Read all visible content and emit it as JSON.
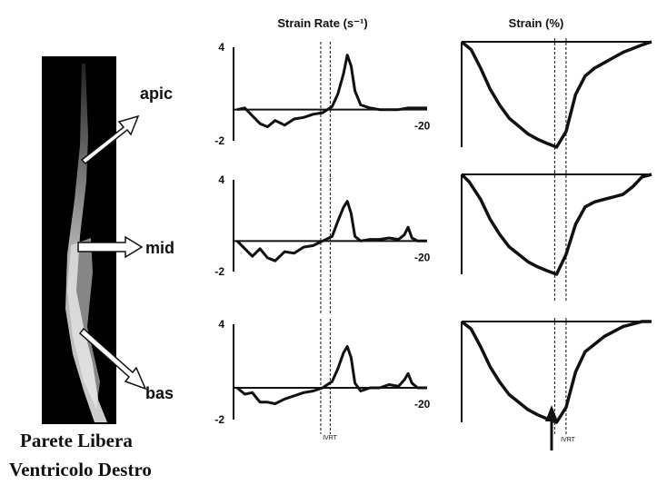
{
  "titles": {
    "strain_rate": "Strain Rate (s⁻¹)",
    "strain": "Strain (%)"
  },
  "echo_labels": {
    "apic": "apic",
    "mid": "mid",
    "bas": "bas"
  },
  "caption": {
    "line1": "Parete Libera",
    "line2": "Ventricolo Destro"
  },
  "marker_label": "IVRT",
  "colors": {
    "ink": "#111111",
    "echo_bg": "#000000"
  },
  "chart_data": [
    {
      "type": "line",
      "title": "Strain Rate (s⁻¹)",
      "segment": "apic",
      "tick_labels": {
        "top": "4",
        "bottom": "-2",
        "right": "-20"
      },
      "ylim": [
        -2,
        4
      ],
      "series": [
        {
          "x": [
            0,
            0.04,
            0.08,
            0.12,
            0.16,
            0.2,
            0.25,
            0.3,
            0.35,
            0.4,
            0.45,
            0.5,
            0.53,
            0.56,
            0.58,
            0.6,
            0.62,
            0.65,
            0.7,
            0.75,
            0.8,
            0.85,
            0.9,
            0.95,
            1.0
          ],
          "y": [
            0,
            0.1,
            -0.4,
            -0.9,
            -1.1,
            -0.7,
            -1.0,
            -0.6,
            -0.5,
            -0.3,
            -0.2,
            0.2,
            1.0,
            2.3,
            3.5,
            2.8,
            1.2,
            0.3,
            0.1,
            0.0,
            0.0,
            0.0,
            0.1,
            0.1,
            0.1
          ]
        }
      ],
      "markers": [
        0.44,
        0.49
      ]
    },
    {
      "type": "line",
      "title": "Strain Rate (s⁻¹)",
      "segment": "mid",
      "tick_labels": {
        "top": "4",
        "bottom": "-2",
        "right": "-20"
      },
      "ylim": [
        -2,
        4
      ],
      "series": [
        {
          "x": [
            0,
            0.04,
            0.08,
            0.12,
            0.16,
            0.2,
            0.25,
            0.3,
            0.35,
            0.4,
            0.45,
            0.5,
            0.53,
            0.56,
            0.58,
            0.6,
            0.62,
            0.65,
            0.7,
            0.75,
            0.8,
            0.85,
            0.88,
            0.9,
            0.92,
            0.95,
            1.0
          ],
          "y": [
            0,
            -0.5,
            -1.0,
            -0.5,
            -1.1,
            -1.3,
            -0.7,
            -0.8,
            -0.4,
            -0.3,
            0.0,
            0.3,
            1.3,
            2.2,
            2.6,
            1.8,
            0.3,
            0.0,
            0.1,
            0.1,
            0.2,
            0.1,
            0.4,
            0.9,
            0.2,
            0.0,
            0.0
          ]
        }
      ],
      "markers": [
        0.44,
        0.49
      ]
    },
    {
      "type": "line",
      "title": "Strain Rate (s⁻¹)",
      "segment": "bas",
      "tick_labels": {
        "top": "4",
        "bottom": "-2",
        "right": "-20"
      },
      "ylim": [
        -2,
        4
      ],
      "series": [
        {
          "x": [
            0,
            0.04,
            0.08,
            0.12,
            0.16,
            0.2,
            0.25,
            0.3,
            0.35,
            0.4,
            0.45,
            0.5,
            0.53,
            0.56,
            0.58,
            0.6,
            0.62,
            0.65,
            0.7,
            0.75,
            0.8,
            0.85,
            0.88,
            0.9,
            0.92,
            0.95,
            1.0
          ],
          "y": [
            0,
            -0.4,
            -0.3,
            -0.9,
            -0.9,
            -1.0,
            -0.7,
            -0.5,
            -0.3,
            -0.2,
            0.0,
            0.4,
            1.2,
            2.2,
            2.6,
            1.9,
            0.3,
            -0.2,
            0.0,
            0.0,
            0.2,
            0.1,
            0.5,
            0.9,
            0.3,
            0.0,
            0.0
          ]
        }
      ],
      "markers": [
        0.44,
        0.49
      ]
    },
    {
      "type": "line",
      "title": "Strain (%)",
      "segment": "apic",
      "ylim": [
        -20,
        0
      ],
      "series": [
        {
          "x": [
            0,
            0.05,
            0.1,
            0.15,
            0.2,
            0.25,
            0.3,
            0.35,
            0.4,
            0.45,
            0.5,
            0.55,
            0.6,
            0.65,
            0.7,
            0.75,
            0.8,
            0.85,
            0.9,
            0.95,
            1.0
          ],
          "y": [
            0,
            -1.5,
            -5,
            -9,
            -12,
            -14.5,
            -16,
            -17.5,
            -18.5,
            -19.3,
            -20,
            -17,
            -10,
            -6.5,
            -5,
            -4,
            -3,
            -2,
            -1.3,
            -0.6,
            0
          ]
        }
      ],
      "markers": [
        0.49,
        0.55
      ]
    },
    {
      "type": "line",
      "title": "Strain (%)",
      "segment": "mid",
      "ylim": [
        -20,
        0
      ],
      "series": [
        {
          "x": [
            0,
            0.04,
            0.1,
            0.15,
            0.2,
            0.25,
            0.3,
            0.35,
            0.4,
            0.45,
            0.5,
            0.55,
            0.6,
            0.65,
            0.7,
            0.75,
            0.8,
            0.85,
            0.9,
            0.95,
            1.0
          ],
          "y": [
            0,
            -1.5,
            -5,
            -9,
            -12,
            -14.5,
            -16,
            -17.5,
            -18.5,
            -19.3,
            -20,
            -16,
            -10,
            -6.5,
            -5.5,
            -5,
            -4.5,
            -4,
            -2.5,
            -0.5,
            0
          ]
        }
      ],
      "markers": [
        0.49,
        0.55
      ]
    },
    {
      "type": "line",
      "title": "Strain (%)",
      "segment": "bas",
      "ylim": [
        -20,
        0
      ],
      "series": [
        {
          "x": [
            0,
            0.05,
            0.1,
            0.15,
            0.2,
            0.25,
            0.3,
            0.35,
            0.4,
            0.45,
            0.5,
            0.55,
            0.6,
            0.65,
            0.7,
            0.75,
            0.8,
            0.85,
            0.9,
            0.95,
            1.0
          ],
          "y": [
            0,
            -1.5,
            -5,
            -9,
            -12,
            -14.5,
            -16,
            -17.5,
            -18.5,
            -19.3,
            -20,
            -17,
            -10,
            -6,
            -4.5,
            -3,
            -2,
            -1,
            -0.5,
            0,
            0
          ]
        }
      ],
      "markers": [
        0.49,
        0.55
      ]
    }
  ]
}
